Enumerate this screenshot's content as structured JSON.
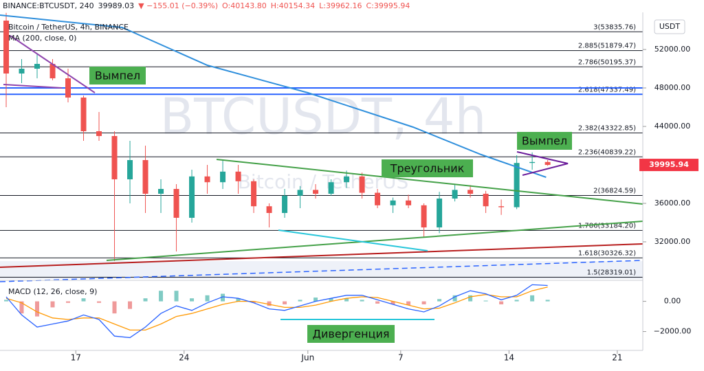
{
  "header": {
    "symbol": "BINANCE:BTCUSDT, 240",
    "price": "39989.03",
    "change": "▼ −155.01 (−0.39%)",
    "open": "O:40143.80",
    "high": "H:40154.34",
    "low": "L:39962.16",
    "close": "C:39995.94"
  },
  "chart_data": [
    {
      "type": "candlestick",
      "legend_title": "Bitcoin / TetherUS, 4h, BINANCE",
      "watermark": "BTCUSDT, 4h",
      "watermark_subtitle": "Bitcoin / TetherUS",
      "currency": "USDT",
      "up_color": "#26a69a",
      "down_color": "#ef5350",
      "x": [
        12.5,
        13.5,
        14.5,
        15.5,
        16.5,
        17.5,
        18.5,
        19.5,
        20.5,
        21.5,
        22.5,
        23.5,
        24.5,
        25.5,
        26.5,
        27.5,
        28.5,
        29.5,
        30.5,
        31.5,
        32.5,
        33.5,
        34.5,
        35.5,
        36.5,
        37.5,
        38.5,
        39.5,
        40.5,
        41.5,
        42.5,
        43.5,
        44.5,
        45.5,
        46.5,
        47.5
      ],
      "open": [
        55000,
        49500,
        50000,
        50500,
        49000,
        47000,
        43500,
        43000,
        38500,
        40500,
        37000,
        37500,
        34500,
        38800,
        38200,
        39300,
        38300,
        35700,
        35000,
        36800,
        37400,
        37000,
        38200,
        38800,
        37100,
        35800,
        36300,
        35800,
        33500,
        36500,
        37400,
        37000,
        35700,
        35600,
        40200,
        40300
      ],
      "high": [
        55800,
        51000,
        51500,
        51000,
        50000,
        47200,
        45500,
        43500,
        42500,
        42000,
        38500,
        38000,
        39500,
        40000,
        40500,
        40000,
        38500,
        36000,
        37500,
        37800,
        38000,
        38500,
        39400,
        39200,
        37500,
        36600,
        36900,
        36000,
        37200,
        38000,
        37900,
        37300,
        36400,
        41000,
        41300,
        40500
      ],
      "low": [
        46000,
        48500,
        49000,
        48800,
        46500,
        42500,
        42500,
        30000,
        36000,
        35000,
        35000,
        31000,
        34000,
        37000,
        37500,
        37000,
        35000,
        33500,
        34500,
        35500,
        36500,
        36800,
        37600,
        36500,
        35500,
        35000,
        35500,
        32500,
        32900,
        36200,
        36600,
        35000,
        34800,
        35400,
        39500,
        39900
      ],
      "close": [
        49500,
        50000,
        50500,
        49000,
        47000,
        43500,
        43000,
        38500,
        40500,
        37000,
        37500,
        34500,
        38800,
        38200,
        39300,
        38300,
        35700,
        35000,
        36800,
        37400,
        37000,
        38200,
        38800,
        37100,
        35800,
        36300,
        35800,
        33500,
        36500,
        37400,
        37000,
        35700,
        35600,
        40200,
        40300,
        39995.94
      ],
      "ma": {
        "name": "MA (200, close, 0)",
        "color": "#2f8fdc",
        "x": [
          12.1,
          20,
          25.5,
          32,
          38.8,
          43.2,
          47.4
        ],
        "values": [
          55571,
          54286,
          50357,
          47500,
          43929,
          41071,
          38714
        ]
      },
      "fib_color": "#131722",
      "fib_levels": [
        {
          "value": 53835.76,
          "label": "3(53835.76)"
        },
        {
          "value": 51879.47,
          "label": "2.885(51879.47)"
        },
        {
          "value": 50195.37,
          "label": "2.786(50195.37)"
        },
        {
          "value": 47337.49,
          "label": "2.618(47337.49)",
          "color": "#2962ff"
        },
        {
          "value": 43322.85,
          "label": "2.382(43322.85)"
        },
        {
          "value": 40839.22,
          "label": "2.236(40839.22)"
        },
        {
          "value": 36824.59,
          "label": "2(36824.59)"
        },
        {
          "value": 33184.2,
          "label": "1.786(33184.20)"
        },
        {
          "value": 30326.32,
          "label": "1.618(30326.32)"
        },
        {
          "value": 28319.01,
          "label": "1.5(28319.01)"
        }
      ],
      "last_price": 39995.94,
      "last_price_color": "#f23645",
      "ylim": [
        28000,
        56000
      ],
      "yticks": [
        {
          "value": 52000,
          "label": "52000.00"
        },
        {
          "value": 48000,
          "label": "48000.00"
        },
        {
          "value": 44000,
          "label": "44000.00"
        },
        {
          "value": 36000,
          "label": "36000.00"
        },
        {
          "value": 32000,
          "label": "32000.00"
        }
      ],
      "xlim": [
        12.1,
        53.65
      ],
      "xticks": [
        17,
        24,
        {
          "value": 32,
          "label": "Jun"
        },
        {
          "value": 38,
          "label": "7"
        },
        {
          "value": 45,
          "label": "14"
        },
        {
          "value": 52,
          "label": "21"
        }
      ],
      "annotations": [
        "Вымпел",
        "Вымпел",
        "Треугольник",
        "Дивергенция"
      ],
      "annotation_color": "#4caf50"
    },
    {
      "type": "macd",
      "title": "MACD (12, 26, close, 9)",
      "macd": {
        "color": "#2962ff",
        "values": [
          300,
          -900,
          -1700,
          -1500,
          -1300,
          -900,
          -1200,
          -2300,
          -2400,
          -1700,
          -800,
          -300,
          -600,
          -100,
          300,
          200,
          -100,
          -500,
          -600,
          -300,
          0,
          200,
          400,
          400,
          100,
          -200,
          -500,
          -700,
          -300,
          300,
          700,
          500,
          100,
          400,
          1100,
          1050
        ]
      },
      "signal": {
        "color": "#ff9800",
        "values": [
          200,
          -100,
          -700,
          -1100,
          -1200,
          -1100,
          -1100,
          -1500,
          -1900,
          -1900,
          -1500,
          -1000,
          -800,
          -500,
          -200,
          0,
          0,
          -200,
          -400,
          -400,
          -250,
          0,
          200,
          300,
          250,
          0,
          -250,
          -500,
          -450,
          -100,
          300,
          450,
          300,
          300,
          700,
          950
        ]
      },
      "histogram": {
        "up_color": "#80cbc4",
        "down_color": "#ef9a9a",
        "values": [
          100,
          -800,
          -1000,
          -400,
          -100,
          200,
          -100,
          -800,
          -500,
          200,
          700,
          700,
          200,
          400,
          500,
          200,
          -100,
          -300,
          -200,
          100,
          250,
          200,
          200,
          100,
          -150,
          -200,
          -250,
          -200,
          150,
          400,
          400,
          50,
          -200,
          100,
          400,
          100
        ]
      },
      "ylim": [
        -3200,
        1300
      ],
      "yticks": [
        {
          "value": 0,
          "label": "0.00"
        },
        {
          "value": -2000,
          "label": "−2000.00"
        }
      ]
    }
  ]
}
